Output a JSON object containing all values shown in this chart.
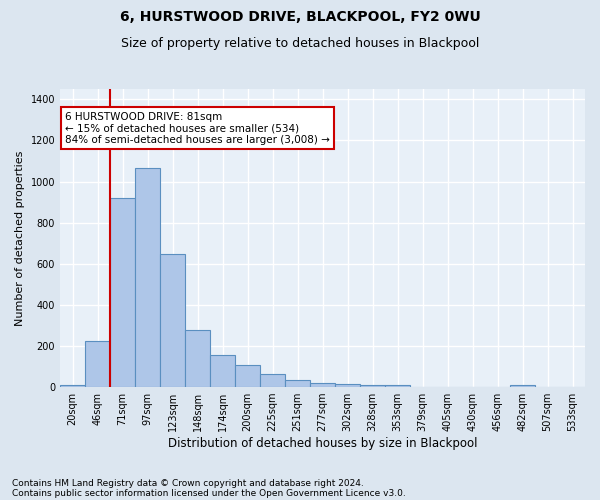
{
  "title1": "6, HURSTWOOD DRIVE, BLACKPOOL, FY2 0WU",
  "title2": "Size of property relative to detached houses in Blackpool",
  "xlabel": "Distribution of detached houses by size in Blackpool",
  "ylabel": "Number of detached properties",
  "footnote1": "Contains HM Land Registry data © Crown copyright and database right 2024.",
  "footnote2": "Contains public sector information licensed under the Open Government Licence v3.0.",
  "annotation_line1": "6 HURSTWOOD DRIVE: 81sqm",
  "annotation_line2": "← 15% of detached houses are smaller (534)",
  "annotation_line3": "84% of semi-detached houses are larger (3,008) →",
  "bar_values": [
    10,
    225,
    920,
    1065,
    645,
    280,
    155,
    105,
    65,
    35,
    20,
    15,
    10,
    10,
    0,
    0,
    0,
    0,
    10,
    0,
    0
  ],
  "x_labels": [
    "20sqm",
    "46sqm",
    "71sqm",
    "97sqm",
    "123sqm",
    "148sqm",
    "174sqm",
    "200sqm",
    "225sqm",
    "251sqm",
    "277sqm",
    "302sqm",
    "328sqm",
    "353sqm",
    "379sqm",
    "405sqm",
    "430sqm",
    "456sqm",
    "482sqm",
    "507sqm",
    "533sqm"
  ],
  "bar_color": "#aec6e8",
  "bar_edgecolor": "#5a8fc0",
  "redline_x": 1.5,
  "ylim": [
    0,
    1450
  ],
  "yticks": [
    0,
    200,
    400,
    600,
    800,
    1000,
    1200,
    1400
  ],
  "background_color": "#dce6f0",
  "plot_bg_color": "#e8f0f8",
  "grid_color": "#ffffff",
  "annotation_box_facecolor": "#ffffff",
  "annotation_box_edgecolor": "#cc0000",
  "red_line_color": "#cc0000",
  "title1_fontsize": 10,
  "title2_fontsize": 9,
  "xlabel_fontsize": 8.5,
  "ylabel_fontsize": 8,
  "tick_fontsize": 7,
  "annotation_fontsize": 7.5,
  "footnote_fontsize": 6.5
}
